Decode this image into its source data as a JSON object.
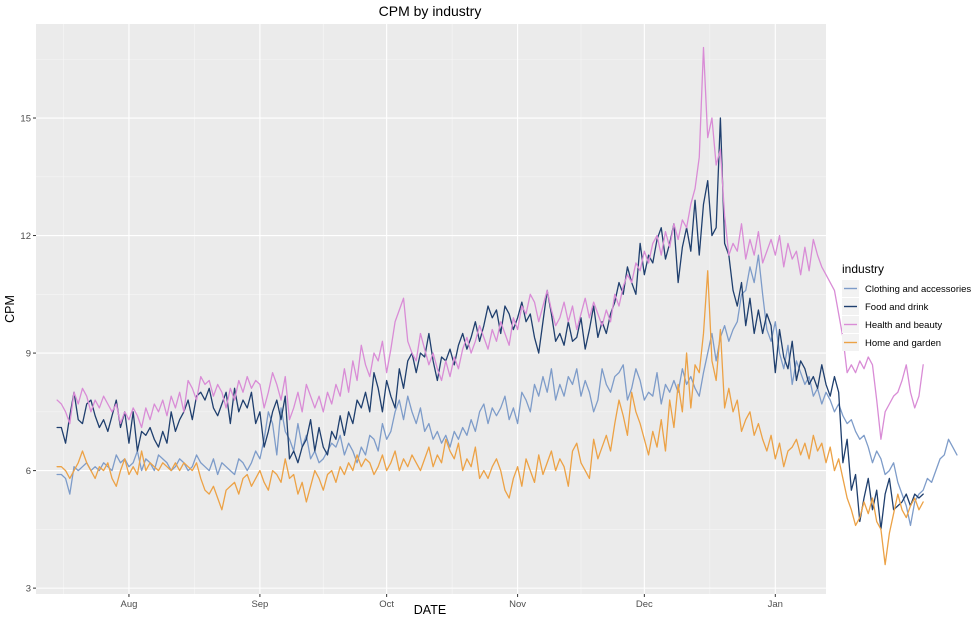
{
  "chart_data": {
    "type": "line",
    "title": "CPM by industry",
    "xlabel": "DATE",
    "ylabel": "CPM",
    "x_start": "2017-07-15",
    "x_step_days": 1,
    "x_range": [
      "2017-07-10",
      "2018-01-13"
    ],
    "x_ticks": [
      {
        "label": "Aug",
        "date": "2017-08-01"
      },
      {
        "label": "Sep",
        "date": "2017-09-01"
      },
      {
        "label": "Oct",
        "date": "2017-10-01"
      },
      {
        "label": "Nov",
        "date": "2017-11-01"
      },
      {
        "label": "Dec",
        "date": "2017-12-01"
      },
      {
        "label": "Jan",
        "date": "2018-01-01"
      }
    ],
    "ylim": [
      2.85,
      17.4
    ],
    "y_ticks": [
      3,
      6,
      9,
      12,
      15
    ],
    "grid": true,
    "legend_title": "industry",
    "legend_position": "right",
    "series": [
      {
        "name": "Clothing and accessories",
        "color": "#7e9cc9",
        "values": [
          5.9,
          5.9,
          5.8,
          5.4,
          6.1,
          6.0,
          6.1,
          6.2,
          6.0,
          6.1,
          6.0,
          6.2,
          6.1,
          6.0,
          6.4,
          6.2,
          6.3,
          6.1,
          6.2,
          6.5,
          6.0,
          6.3,
          6.2,
          6.0,
          6.4,
          6.3,
          6.2,
          6.0,
          6.1,
          6.3,
          6.2,
          6.0,
          6.1,
          6.4,
          6.2,
          6.1,
          6.0,
          6.3,
          5.9,
          6.2,
          6.1,
          6.0,
          5.9,
          6.3,
          6.2,
          6.0,
          6.2,
          6.5,
          6.3,
          6.8,
          7.5,
          7.2,
          6.4,
          7.6,
          7.0,
          6.8,
          6.5,
          7.2,
          6.6,
          6.9,
          6.3,
          6.5,
          6.2,
          6.3,
          6.5,
          6.7,
          6.6,
          6.9,
          6.4,
          6.7,
          6.5,
          6.2,
          6.6,
          6.4,
          6.9,
          6.8,
          6.5,
          7.2,
          6.8,
          7.0,
          7.5,
          7.8,
          7.3,
          7.9,
          7.5,
          7.2,
          7.6,
          7.0,
          7.2,
          6.8,
          7.0,
          6.7,
          6.9,
          6.6,
          7.0,
          6.8,
          7.1,
          6.9,
          7.3,
          7.0,
          7.5,
          7.7,
          7.2,
          7.6,
          7.4,
          7.6,
          7.9,
          7.3,
          7.6,
          7.2,
          8.0,
          7.8,
          7.5,
          8.2,
          7.9,
          8.4,
          8.0,
          8.6,
          7.8,
          8.2,
          7.9,
          8.4,
          8.2,
          8.6,
          7.9,
          8.3,
          8.0,
          7.5,
          7.8,
          8.6,
          8.2,
          8.0,
          8.4,
          8.5,
          8.7,
          7.8,
          8.1,
          8.6,
          8.3,
          7.8,
          8.0,
          7.9,
          8.5,
          7.7,
          8.2,
          8.0,
          8.3,
          8.0,
          8.6,
          8.2,
          8.4,
          8.1,
          7.9,
          8.5,
          9.0,
          9.5,
          8.8,
          9.4,
          9.7,
          9.3,
          9.6,
          9.8,
          10.5,
          10.6,
          11.2,
          10.8,
          11.5,
          10.5,
          9.6,
          9.3,
          9.8,
          9.0,
          8.6,
          9.2,
          8.2,
          8.8,
          8.5,
          8.2,
          8.4,
          7.9,
          8.1,
          7.7,
          8.0,
          7.8,
          7.5,
          7.7,
          7.4,
          7.2,
          7.3,
          7.0,
          6.8,
          6.9,
          6.6,
          6.2,
          6.5,
          6.3,
          5.9,
          6.0,
          6.2,
          5.7,
          5.4,
          5.1,
          4.6,
          5.2,
          5.4,
          5.5,
          5.8,
          5.7,
          6.0,
          6.3,
          6.4,
          6.8,
          6.6,
          6.4
        ]
      },
      {
        "name": "Food and drink",
        "color": "#1f3f6e",
        "values": [
          7.1,
          7.1,
          6.7,
          7.4,
          8.0,
          7.3,
          7.2,
          7.7,
          7.8,
          7.4,
          7.1,
          7.3,
          7.0,
          7.4,
          7.8,
          7.1,
          7.5,
          6.7,
          7.5,
          6.5,
          7.0,
          6.9,
          7.1,
          6.8,
          6.6,
          7.0,
          6.7,
          7.5,
          7.0,
          7.3,
          7.5,
          7.8,
          7.3,
          7.9,
          8.0,
          7.8,
          8.1,
          7.6,
          7.4,
          7.7,
          8.0,
          7.2,
          8.1,
          7.5,
          7.8,
          7.6,
          8.0,
          7.2,
          7.5,
          6.6,
          7.0,
          7.5,
          7.8,
          7.3,
          7.9,
          6.3,
          6.5,
          6.2,
          6.6,
          6.8,
          7.3,
          6.5,
          7.1,
          6.6,
          6.4,
          7.0,
          6.8,
          7.4,
          6.9,
          7.5,
          7.2,
          7.8,
          7.6,
          8.0,
          7.5,
          8.5,
          8.1,
          7.5,
          8.3,
          7.9,
          7.6,
          8.6,
          8.1,
          8.8,
          9.0,
          8.5,
          9.0,
          8.9,
          9.5,
          8.8,
          8.3,
          8.9,
          8.8,
          9.1,
          8.7,
          9.2,
          9.5,
          9.1,
          9.4,
          9.8,
          9.3,
          9.7,
          10.2,
          9.9,
          10.1,
          9.5,
          10.2,
          10.0,
          9.6,
          9.9,
          10.3,
          9.8,
          10.0,
          9.4,
          9.0,
          9.8,
          10.6,
          10.0,
          9.3,
          9.5,
          9.2,
          9.8,
          9.3,
          9.4,
          9.9,
          9.1,
          9.6,
          10.2,
          9.4,
          9.8,
          9.5,
          10.0,
          10.3,
          10.8,
          10.5,
          11.2,
          10.8,
          10.5,
          11.8,
          11.0,
          11.5,
          11.3,
          11.9,
          12.2,
          11.4,
          11.8,
          12.3,
          10.8,
          11.7,
          12.2,
          11.6,
          12.9,
          11.5,
          12.8,
          13.4,
          12.0,
          12.2,
          15.0,
          11.8,
          11.5,
          10.6,
          10.2,
          10.8,
          9.7,
          10.4,
          9.5,
          10.1,
          9.5,
          10.0,
          9.7,
          8.5,
          9.6,
          8.9,
          8.6,
          9.3,
          8.3,
          8.8,
          8.6,
          8.2,
          8.4,
          8.1,
          8.7,
          8.2,
          7.9,
          8.4,
          8.0,
          6.2,
          6.8,
          5.5,
          5.9,
          4.7,
          5.3,
          5.8,
          5.0,
          5.5,
          4.5,
          5.4,
          5.8,
          5.0,
          5.1,
          5.2,
          5.4,
          5.1,
          5.4,
          5.3,
          5.4
        ]
      },
      {
        "name": "Health and beauty",
        "color": "#d98cd6",
        "values": [
          7.8,
          7.7,
          7.5,
          7.2,
          8.0,
          7.7,
          8.1,
          7.9,
          7.5,
          7.8,
          7.6,
          7.9,
          7.7,
          7.5,
          7.7,
          7.2,
          7.5,
          7.3,
          7.6,
          7.4,
          7.1,
          7.6,
          7.3,
          7.7,
          7.5,
          7.8,
          7.4,
          7.9,
          7.6,
          8.0,
          7.5,
          8.3,
          8.1,
          7.8,
          8.4,
          8.2,
          8.3,
          7.9,
          8.2,
          8.0,
          7.6,
          8.1,
          7.8,
          8.3,
          8.0,
          8.4,
          8.1,
          8.3,
          8.2,
          7.6,
          8.0,
          8.5,
          8.2,
          7.8,
          8.4,
          7.3,
          7.6,
          8.0,
          7.5,
          8.2,
          7.9,
          7.6,
          7.9,
          7.5,
          8.0,
          7.7,
          8.2,
          7.9,
          8.6,
          8.0,
          8.8,
          8.3,
          9.2,
          8.7,
          8.4,
          9.0,
          8.8,
          9.3,
          8.5,
          9.1,
          9.8,
          10.1,
          10.4,
          9.3,
          9.0,
          8.8,
          9.5,
          9.1,
          8.7,
          9.0,
          8.6,
          8.3,
          8.8,
          8.4,
          8.9,
          8.6,
          9.1,
          9.4,
          9.0,
          9.3,
          9.7,
          9.4,
          9.1,
          9.6,
          9.3,
          9.8,
          9.5,
          9.2,
          9.9,
          9.6,
          10.2,
          10.0,
          10.5,
          10.3,
          9.8,
          10.2,
          10.6,
          10.1,
          9.7,
          9.9,
          10.3,
          9.8,
          10.2,
          9.6,
          10.0,
          10.4,
          9.9,
          10.3,
          10.0,
          9.7,
          10.1,
          9.8,
          10.5,
          10.2,
          10.7,
          11.0,
          10.8,
          11.3,
          11.1,
          11.6,
          11.3,
          11.8,
          12.0,
          11.5,
          12.1,
          11.7,
          12.3,
          11.9,
          12.4,
          12.2,
          12.8,
          13.2,
          14.0,
          16.8,
          14.5,
          15.0,
          13.8,
          14.2,
          12.5,
          11.5,
          11.8,
          11.6,
          12.3,
          11.4,
          11.9,
          11.5,
          12.1,
          11.3,
          11.6,
          11.9,
          11.5,
          12.0,
          11.2,
          11.8,
          11.4,
          11.6,
          11.0,
          11.7,
          11.1,
          11.9,
          11.5,
          11.2,
          11.0,
          10.8,
          10.6,
          10.0,
          9.4,
          8.5,
          8.7,
          8.5,
          8.8,
          8.6,
          8.9,
          8.7,
          7.8,
          6.8,
          7.5,
          7.7,
          7.9,
          8.0,
          8.3,
          8.7,
          8.0,
          7.6,
          7.9,
          8.7
        ]
      },
      {
        "name": "Home and garden",
        "color": "#eca246",
        "values": [
          6.1,
          6.1,
          6.0,
          5.8,
          6.0,
          6.2,
          6.5,
          6.2,
          6.0,
          5.8,
          6.1,
          6.0,
          6.2,
          5.8,
          5.6,
          6.0,
          6.3,
          5.9,
          6.1,
          5.9,
          6.5,
          6.0,
          6.2,
          6.1,
          6.0,
          6.2,
          6.1,
          6.0,
          6.2,
          6.0,
          6.2,
          6.1,
          6.0,
          6.2,
          5.8,
          5.5,
          5.4,
          5.6,
          5.3,
          5.0,
          5.5,
          5.6,
          5.7,
          5.4,
          5.8,
          5.9,
          5.6,
          5.8,
          6.0,
          5.7,
          5.5,
          6.0,
          5.9,
          5.7,
          6.3,
          5.8,
          5.9,
          5.4,
          5.7,
          5.2,
          5.6,
          6.0,
          5.8,
          5.5,
          5.9,
          6.0,
          5.7,
          6.1,
          5.9,
          6.2,
          6.0,
          6.4,
          6.1,
          6.3,
          6.2,
          5.9,
          6.1,
          6.4,
          6.0,
          6.2,
          6.5,
          6.0,
          6.3,
          6.1,
          6.4,
          6.2,
          6.0,
          6.3,
          6.6,
          6.1,
          6.4,
          6.2,
          6.8,
          6.5,
          6.3,
          6.7,
          6.0,
          6.3,
          6.1,
          6.6,
          5.8,
          6.0,
          5.8,
          6.1,
          6.3,
          6.0,
          5.5,
          5.3,
          5.8,
          6.1,
          5.6,
          6.3,
          6.0,
          5.7,
          6.4,
          5.9,
          6.2,
          6.5,
          6.0,
          6.3,
          6.1,
          5.6,
          6.5,
          6.7,
          6.2,
          6.0,
          5.8,
          6.8,
          6.3,
          6.6,
          6.9,
          6.5,
          7.2,
          7.8,
          7.4,
          6.9,
          8.0,
          7.5,
          7.2,
          6.8,
          6.4,
          7.0,
          6.6,
          7.3,
          6.5,
          7.8,
          7.1,
          8.2,
          7.5,
          9.0,
          7.6,
          8.7,
          8.5,
          9.5,
          11.1,
          8.8,
          8.3,
          9.6,
          7.6,
          8.1,
          7.5,
          7.8,
          7.0,
          7.3,
          7.5,
          6.9,
          7.2,
          6.8,
          6.5,
          6.9,
          6.3,
          6.7,
          6.1,
          6.5,
          6.6,
          6.8,
          6.4,
          6.7,
          6.3,
          6.9,
          6.5,
          6.7,
          6.2,
          6.6,
          6.0,
          6.3,
          5.8,
          5.3,
          5.0,
          4.6,
          4.8,
          5.2,
          4.9,
          5.3,
          4.7,
          4.5,
          3.6,
          4.4,
          4.9,
          5.4,
          5.0,
          4.8,
          5.1,
          5.3,
          5.0,
          5.2
        ]
      }
    ]
  }
}
